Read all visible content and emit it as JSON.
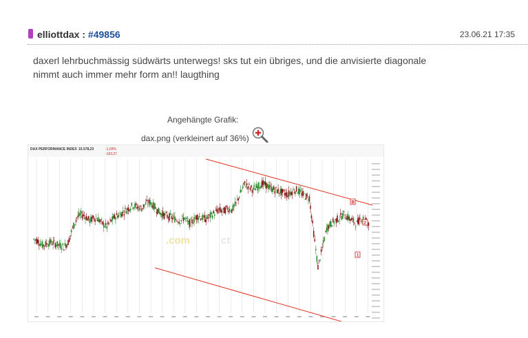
{
  "post": {
    "author": "elliottdax",
    "separator": ":",
    "post_number": "#49856",
    "timestamp": "23.06.21 17:35",
    "text_line1": "daxerl lehrbuchmässig südwärts unterwegs! sks tut ein übriges, und die anvisierte diagonale",
    "text_line2": "nimmt auch immer mehr form an!! laugthing"
  },
  "attachment": {
    "label": "Angehängte Grafik:",
    "filename": "dax.png (verkleinert auf 36%)",
    "zoom_icon": "zoom-in-magnifier-icon"
  },
  "chart_image": {
    "header_title": "DAX PERFORMANCE INDEX",
    "header_value": "15.578,23",
    "header_change": "-1,03%",
    "header_change2": "-163,27",
    "watermark": ".com",
    "watermark_suffix": "ct",
    "annotations": [
      "B",
      "2",
      "1"
    ],
    "colors": {
      "up": "#2e8b2e",
      "down": "#8b1a1a",
      "channel": "#e03020",
      "annot": "#cc2222"
    }
  },
  "chart_data": {
    "type": "line",
    "title": "DAX PERFORMANCE INDEX",
    "xlabel": "",
    "ylabel": "",
    "series": [
      {
        "values": [
          48,
          47,
          44,
          45,
          46,
          45,
          44,
          43,
          46,
          55,
          62,
          64,
          63,
          60,
          62,
          61,
          58,
          56,
          60,
          63,
          64,
          66,
          68,
          70,
          69,
          68,
          71,
          72,
          69,
          66,
          64,
          63,
          62,
          61,
          60,
          62,
          58,
          60,
          63,
          62,
          61,
          63,
          65,
          67,
          66,
          68,
          67,
          71,
          78,
          84,
          82,
          80,
          82,
          84,
          83,
          81,
          80,
          79,
          78,
          77,
          79,
          80,
          78,
          76,
          75,
          52,
          30,
          42,
          55,
          58,
          60,
          62,
          64,
          62,
          60,
          58,
          62,
          61,
          56
        ]
      }
    ]
  }
}
